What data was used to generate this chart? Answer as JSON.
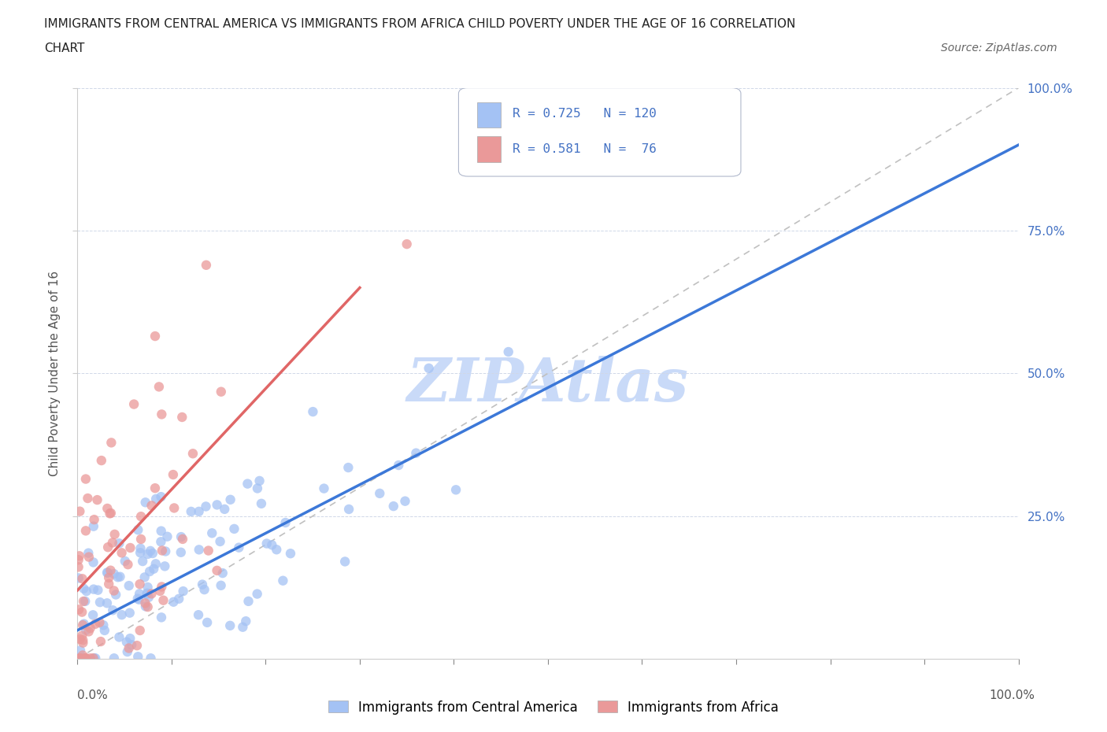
{
  "title_line1": "IMMIGRANTS FROM CENTRAL AMERICA VS IMMIGRANTS FROM AFRICA CHILD POVERTY UNDER THE AGE OF 16 CORRELATION",
  "title_line2": "CHART",
  "source": "Source: ZipAtlas.com",
  "ylabel": "Child Poverty Under the Age of 16",
  "legend_label1": "Immigrants from Central America",
  "legend_label2": "Immigrants from Africa",
  "R1": 0.725,
  "N1": 120,
  "R2": 0.581,
  "N2": 76,
  "color1": "#a4c2f4",
  "color2": "#ea9999",
  "line1_color": "#3c78d8",
  "line2_color": "#e06666",
  "diagonal_color": "#cccccc",
  "watermark": "ZIPAtlas",
  "background_color": "#ffffff",
  "watermark_color": "#c9daf8",
  "tick_color": "#4472c4",
  "seed": 7
}
